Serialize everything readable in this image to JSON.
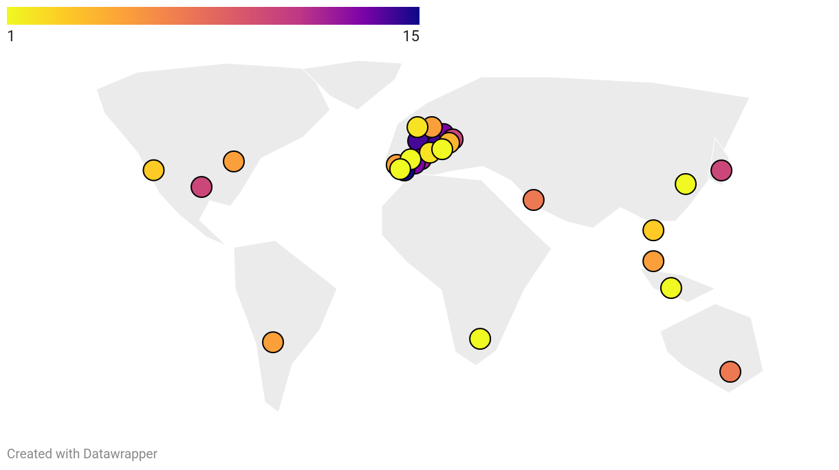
{
  "legend": {
    "min": 1,
    "max": 15
  },
  "points": [
    {
      "lon": -122.4,
      "lat": 37.8,
      "value": 3
    },
    {
      "lon": -85.4,
      "lat": 41.1,
      "value": 5
    },
    {
      "lon": -100.3,
      "lat": 31.5,
      "value": 10
    },
    {
      "lon": -67.3,
      "lat": -26.9,
      "value": 5
    },
    {
      "lon": 28.3,
      "lat": -25.6,
      "value": 1
    },
    {
      "lon": 53.0,
      "lat": 26.6,
      "value": 7
    },
    {
      "lon": 123.2,
      "lat": 32.6,
      "value": 1
    },
    {
      "lon": 139.7,
      "lat": 37.7,
      "value": 10
    },
    {
      "lon": 108.3,
      "lat": 15.2,
      "value": 3
    },
    {
      "lon": 108.3,
      "lat": 3.6,
      "value": 5
    },
    {
      "lon": 116.5,
      "lat": -6.5,
      "value": 1
    },
    {
      "lon": 143.8,
      "lat": -38.0,
      "value": 7
    },
    {
      "lon": -0.3,
      "lat": 48.8,
      "value": 14
    },
    {
      "lon": 11.4,
      "lat": 51.4,
      "value": 13
    },
    {
      "lon": 15.6,
      "lat": 49.4,
      "value": 10
    },
    {
      "lon": 8.3,
      "lat": 47.0,
      "value": 14
    },
    {
      "lon": 14.0,
      "lat": 48.1,
      "value": 4
    },
    {
      "lon": 6.0,
      "lat": 54.0,
      "value": 5
    },
    {
      "lon": -0.6,
      "lat": 54.0,
      "value": 2
    },
    {
      "lon": 1.0,
      "lat": 41.9,
      "value": 12
    },
    {
      "lon": -1.9,
      "lat": 40.3,
      "value": 13
    },
    {
      "lon": -6.7,
      "lat": 37.7,
      "value": 15
    },
    {
      "lon": -10.2,
      "lat": 39.8,
      "value": 5
    },
    {
      "lon": 5.1,
      "lat": 44.4,
      "value": 2
    },
    {
      "lon": 10.8,
      "lat": 45.7,
      "value": 1
    },
    {
      "lon": -3.8,
      "lat": 41.9,
      "value": 1
    },
    {
      "lon": -8.6,
      "lat": 38.2,
      "value": 1
    }
  ],
  "footer": "Created with Datawrapper"
}
